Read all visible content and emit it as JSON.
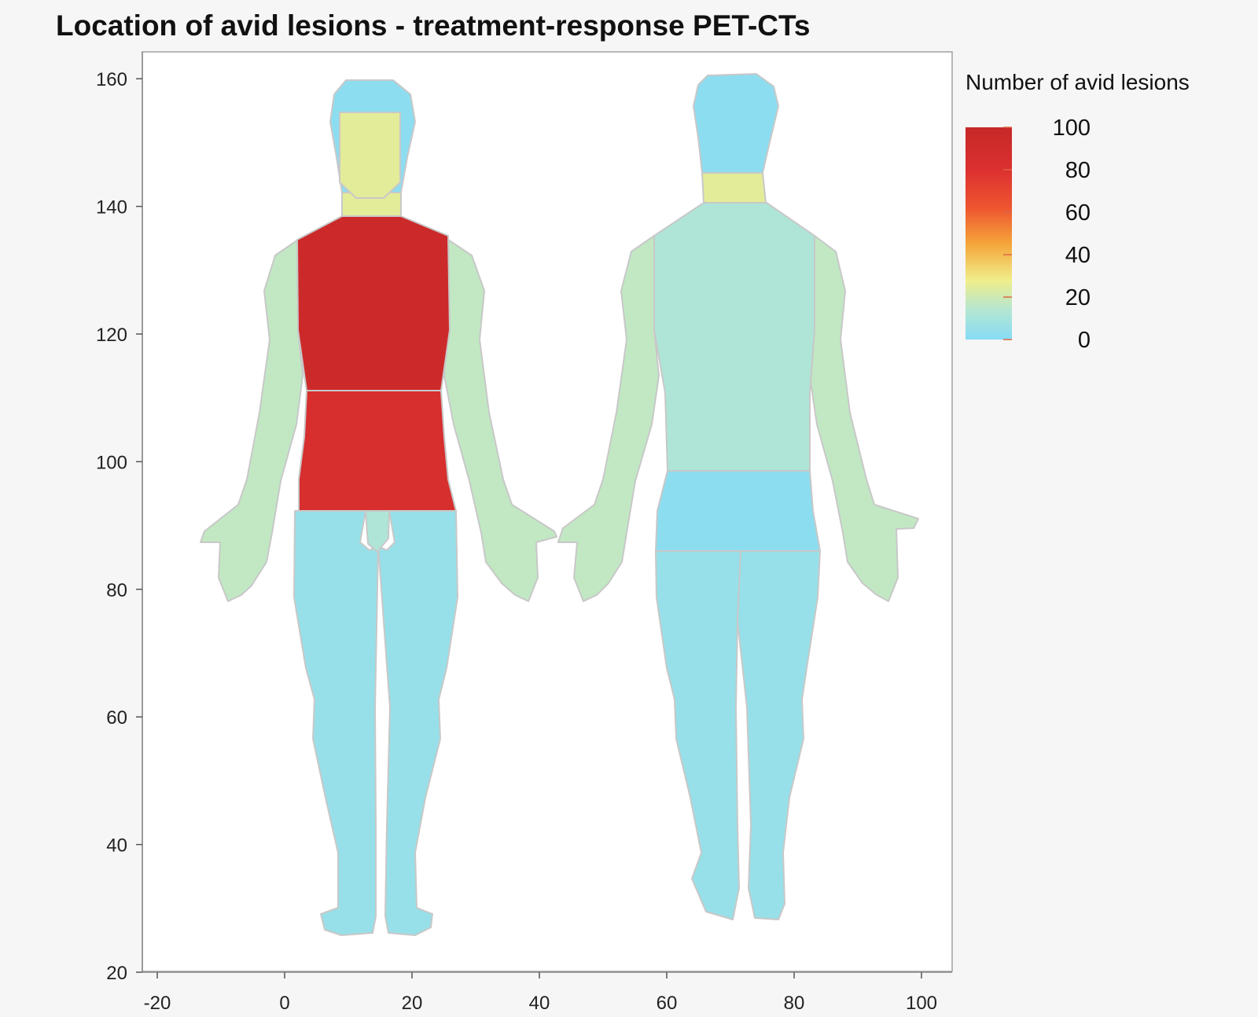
{
  "chart_data": {
    "type": "heatmap",
    "title": "Location of avid lesions - treatment-response PET-CTs",
    "xlabel": "",
    "ylabel": "",
    "xlim": [
      -23,
      104
    ],
    "ylim": [
      20,
      165
    ],
    "x_ticks": [
      -20,
      0,
      20,
      40,
      60,
      80,
      100
    ],
    "y_ticks": [
      20,
      40,
      60,
      80,
      100,
      120,
      140,
      160
    ],
    "grid": false,
    "colorbar": {
      "title": "Number of avid lesions",
      "min": 0,
      "max": 100,
      "ticks": [
        100,
        80,
        60,
        40,
        20,
        0
      ],
      "colors": [
        "#87dcf5",
        "#b4e6d2",
        "#f0ee8a",
        "#f5a53a",
        "#ee5530",
        "#dc3030",
        "#c62828"
      ]
    },
    "regions": [
      {
        "view": "front",
        "region": "arms",
        "value": 17
      },
      {
        "view": "front",
        "region": "legs",
        "value": 5
      },
      {
        "view": "front",
        "region": "groin",
        "value": 12
      },
      {
        "view": "front",
        "region": "abdomen",
        "value": 85
      },
      {
        "view": "front",
        "region": "chest",
        "value": 95
      },
      {
        "view": "front",
        "region": "neck",
        "value": 25
      },
      {
        "view": "front",
        "region": "head",
        "value": 2
      },
      {
        "view": "front",
        "region": "face",
        "value": 25
      },
      {
        "view": "back",
        "region": "arms",
        "value": 17
      },
      {
        "view": "back",
        "region": "legs",
        "value": 5
      },
      {
        "view": "back",
        "region": "lower back",
        "value": 2
      },
      {
        "view": "back",
        "region": "upper back",
        "value": 12
      },
      {
        "view": "back",
        "region": "neck",
        "value": 25
      },
      {
        "view": "back",
        "region": "head",
        "value": 2
      }
    ]
  }
}
